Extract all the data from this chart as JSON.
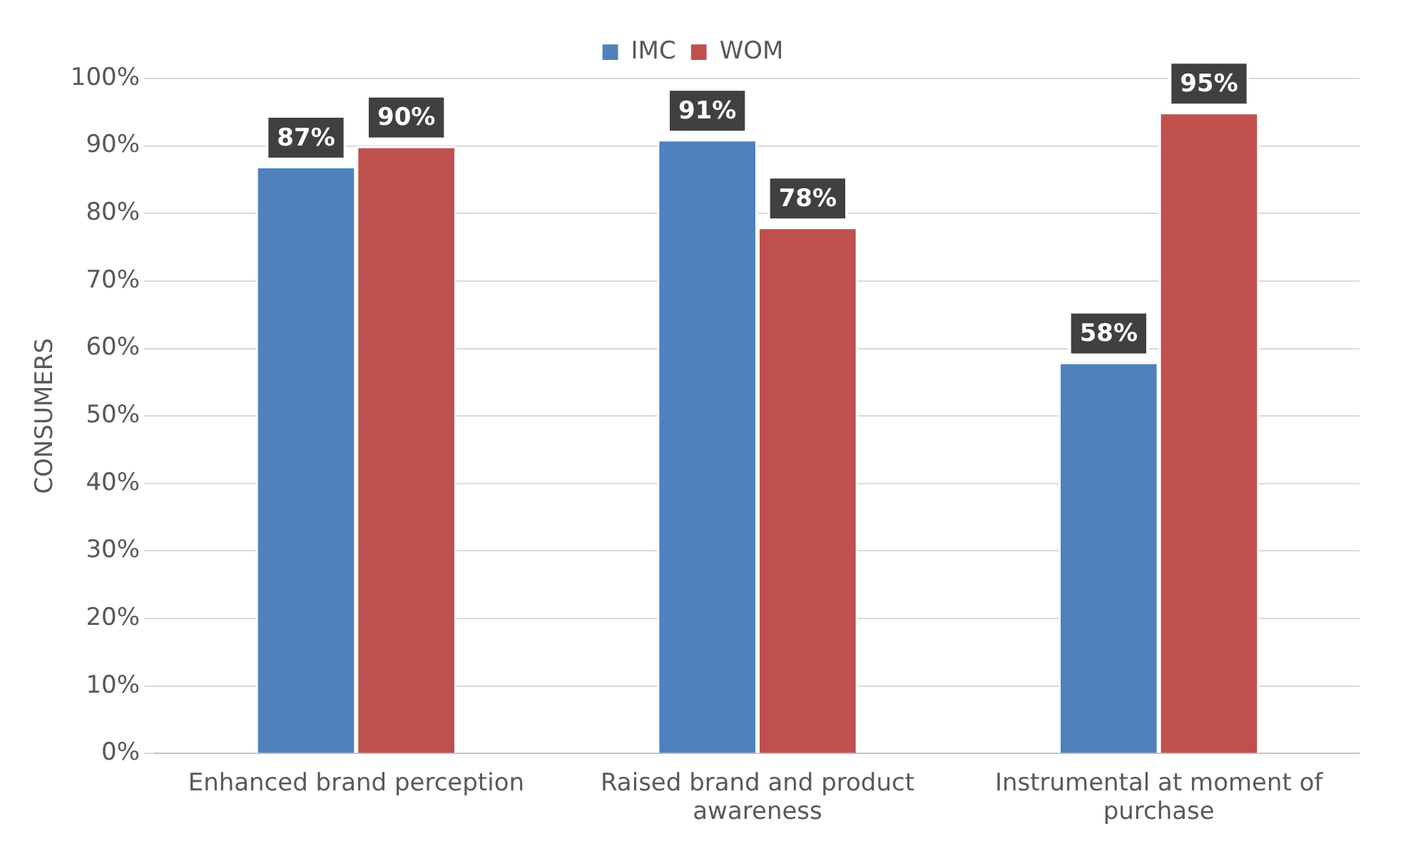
{
  "chart_data": {
    "type": "bar",
    "ylabel": "CONSUMERS",
    "categories": [
      [
        "Enhanced brand perception"
      ],
      [
        "Raised brand and product",
        "awareness"
      ],
      [
        "Instrumental at moment of",
        "purchase"
      ]
    ],
    "series": [
      {
        "name": "IMC",
        "color": "#4f81bd",
        "values": [
          87,
          91,
          58
        ]
      },
      {
        "name": "WOM",
        "color": "#c0504d",
        "values": [
          90,
          78,
          95
        ]
      }
    ],
    "ylim": [
      0,
      100
    ],
    "yticks": [
      {
        "value": 0,
        "label": "0%"
      },
      {
        "value": 10,
        "label": "10%"
      },
      {
        "value": 20,
        "label": "20%"
      },
      {
        "value": 30,
        "label": "30%"
      },
      {
        "value": 40,
        "label": "40%"
      },
      {
        "value": 50,
        "label": "50%"
      },
      {
        "value": 60,
        "label": "60%"
      },
      {
        "value": 70,
        "label": "70%"
      },
      {
        "value": 80,
        "label": "80%"
      },
      {
        "value": 90,
        "label": "90%"
      },
      {
        "value": 100,
        "label": "100%"
      }
    ],
    "value_labels": [
      [
        "87%",
        "91%",
        "58%"
      ],
      [
        "90%",
        "78%",
        "95%"
      ]
    ],
    "grid": "y",
    "legend": "top"
  }
}
